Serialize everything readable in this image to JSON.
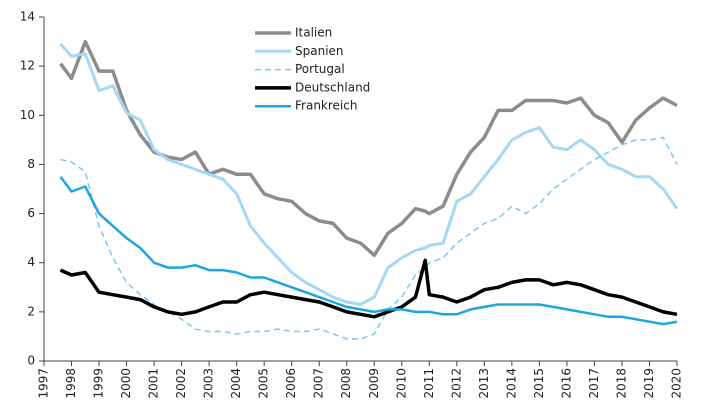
{
  "chart_data": {
    "type": "line",
    "x": [
      1997.6,
      1998,
      1998.5,
      1999,
      1999.5,
      2000,
      2000.5,
      2001,
      2001.5,
      2002,
      2002.5,
      2003,
      2003.5,
      2004,
      2004.5,
      2005,
      2005.5,
      2006,
      2006.5,
      2007,
      2007.5,
      2008,
      2008.5,
      2009,
      2009.5,
      2010,
      2010.5,
      2010.85,
      2011,
      2011.5,
      2012,
      2012.5,
      2013,
      2013.5,
      2014,
      2014.5,
      2015,
      2015.5,
      2016,
      2016.5,
      2017,
      2017.5,
      2018,
      2018.5,
      2019,
      2019.5,
      2020
    ],
    "series": [
      {
        "name": "Italien",
        "color": "#8c8c8c",
        "width": 3.5,
        "dashed": false,
        "values": [
          12.1,
          11.5,
          13.0,
          11.8,
          11.8,
          10.2,
          9.2,
          8.5,
          8.3,
          8.2,
          8.5,
          7.6,
          7.8,
          7.6,
          7.6,
          6.8,
          6.6,
          6.5,
          6.0,
          5.7,
          5.6,
          5.0,
          4.8,
          4.3,
          5.2,
          5.6,
          6.2,
          6.1,
          6.0,
          6.3,
          7.6,
          8.5,
          9.1,
          10.2,
          10.2,
          10.6,
          10.6,
          10.6,
          10.5,
          10.7,
          10.0,
          9.7,
          8.9,
          9.8,
          10.3,
          10.7,
          10.4
        ]
      },
      {
        "name": "Spanien",
        "color": "#a6d8f3",
        "width": 3,
        "dashed": false,
        "values": [
          12.9,
          12.4,
          12.5,
          11.0,
          11.2,
          10.1,
          9.8,
          8.6,
          8.2,
          8.0,
          7.8,
          7.6,
          7.4,
          6.8,
          5.5,
          4.8,
          4.2,
          3.6,
          3.2,
          2.9,
          2.6,
          2.4,
          2.3,
          2.6,
          3.8,
          4.2,
          4.5,
          4.6,
          4.7,
          4.8,
          6.5,
          6.8,
          7.5,
          8.2,
          9.0,
          9.3,
          9.5,
          8.7,
          8.6,
          9.0,
          8.6,
          8.0,
          7.8,
          7.5,
          7.5,
          7.0,
          6.2
        ]
      },
      {
        "name": "Portugal",
        "color": "#7cc8ee",
        "width": 1.5,
        "dashed": true,
        "values": [
          8.2,
          8.1,
          7.7,
          5.5,
          4.2,
          3.2,
          2.7,
          2.3,
          2.0,
          1.7,
          1.3,
          1.2,
          1.2,
          1.1,
          1.2,
          1.2,
          1.3,
          1.2,
          1.2,
          1.3,
          1.1,
          0.9,
          0.9,
          1.1,
          2.1,
          2.6,
          3.5,
          3.8,
          4.0,
          4.2,
          4.8,
          5.2,
          5.6,
          5.8,
          6.3,
          6.0,
          6.4,
          7.0,
          7.4,
          7.8,
          8.2,
          8.5,
          8.8,
          9.0,
          9.0,
          9.1,
          8.0
        ]
      },
      {
        "name": "Deutschland",
        "color": "#000000",
        "width": 3.5,
        "dashed": false,
        "values": [
          3.7,
          3.5,
          3.6,
          2.8,
          2.7,
          2.6,
          2.5,
          2.2,
          2.0,
          1.9,
          2.0,
          2.2,
          2.4,
          2.4,
          2.7,
          2.8,
          2.7,
          2.6,
          2.5,
          2.4,
          2.2,
          2.0,
          1.9,
          1.8,
          2.0,
          2.2,
          2.6,
          4.1,
          2.7,
          2.6,
          2.4,
          2.6,
          2.9,
          3.0,
          3.2,
          3.3,
          3.3,
          3.1,
          3.2,
          3.1,
          2.9,
          2.7,
          2.6,
          2.4,
          2.2,
          2.0,
          1.9
        ]
      },
      {
        "name": "Frankreich",
        "color": "#1ea5e0",
        "width": 2.5,
        "dashed": false,
        "values": [
          7.5,
          6.9,
          7.1,
          6.0,
          5.5,
          5.0,
          4.6,
          4.0,
          3.8,
          3.8,
          3.9,
          3.7,
          3.7,
          3.6,
          3.4,
          3.4,
          3.2,
          3.0,
          2.8,
          2.6,
          2.4,
          2.2,
          2.1,
          2.0,
          2.1,
          2.1,
          2.0,
          2.0,
          2.0,
          1.9,
          1.9,
          2.1,
          2.2,
          2.3,
          2.3,
          2.3,
          2.3,
          2.2,
          2.1,
          2.0,
          1.9,
          1.8,
          1.8,
          1.7,
          1.6,
          1.5,
          1.6
        ]
      }
    ],
    "xlim": [
      1997,
      2020
    ],
    "xticks": [
      1997,
      1998,
      1999,
      2000,
      2001,
      2002,
      2003,
      2004,
      2005,
      2006,
      2007,
      2008,
      2009,
      2010,
      2011,
      2012,
      2013,
      2014,
      2015,
      2016,
      2017,
      2018,
      2019,
      2020
    ],
    "ylim": [
      0,
      14
    ],
    "yticks": [
      0,
      2,
      4,
      6,
      8,
      10,
      12,
      14
    ],
    "grid": false,
    "legend": "top"
  }
}
